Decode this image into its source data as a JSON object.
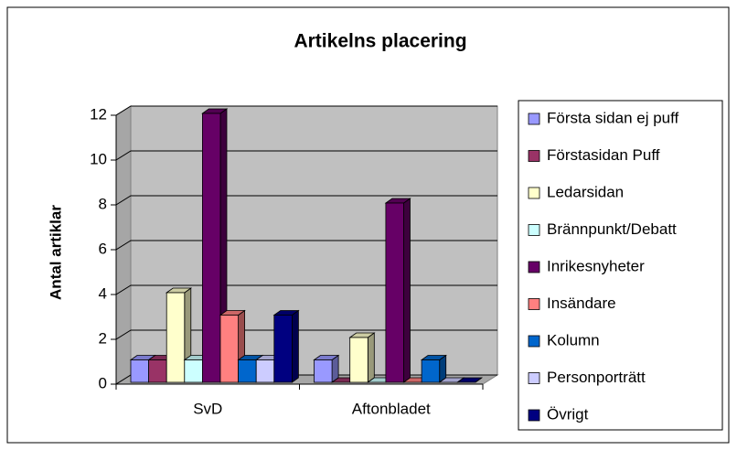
{
  "chart_data": {
    "type": "bar3d",
    "title": "Artikelns placering",
    "y_label": "Antal artiklar",
    "categories": [
      "SvD",
      "Aftonbladet"
    ],
    "series": [
      {
        "name": "Första sidan ej puff",
        "color": "#9999ff",
        "values": [
          1,
          1
        ]
      },
      {
        "name": "Förstasidan Puff",
        "color": "#993366",
        "values": [
          1,
          0
        ]
      },
      {
        "name": "Ledarsidan",
        "color": "#ffffcc",
        "values": [
          4,
          2
        ]
      },
      {
        "name": "Brännpunkt/Debatt",
        "color": "#ccffff",
        "values": [
          1,
          0
        ]
      },
      {
        "name": "Inrikesnyheter",
        "color": "#660066",
        "values": [
          12,
          8
        ]
      },
      {
        "name": "Insändare",
        "color": "#ff8080",
        "values": [
          3,
          0
        ]
      },
      {
        "name": "Kolumn",
        "color": "#0066cc",
        "values": [
          1,
          1
        ]
      },
      {
        "name": "Personporträtt",
        "color": "#ccccff",
        "values": [
          1,
          0
        ]
      },
      {
        "name": "Övrigt",
        "color": "#000080",
        "values": [
          3,
          0
        ]
      }
    ],
    "ylim": [
      0,
      12
    ],
    "yticks": [
      0,
      2,
      4,
      6,
      8,
      10,
      12
    ],
    "grid": true,
    "legend": "right"
  }
}
